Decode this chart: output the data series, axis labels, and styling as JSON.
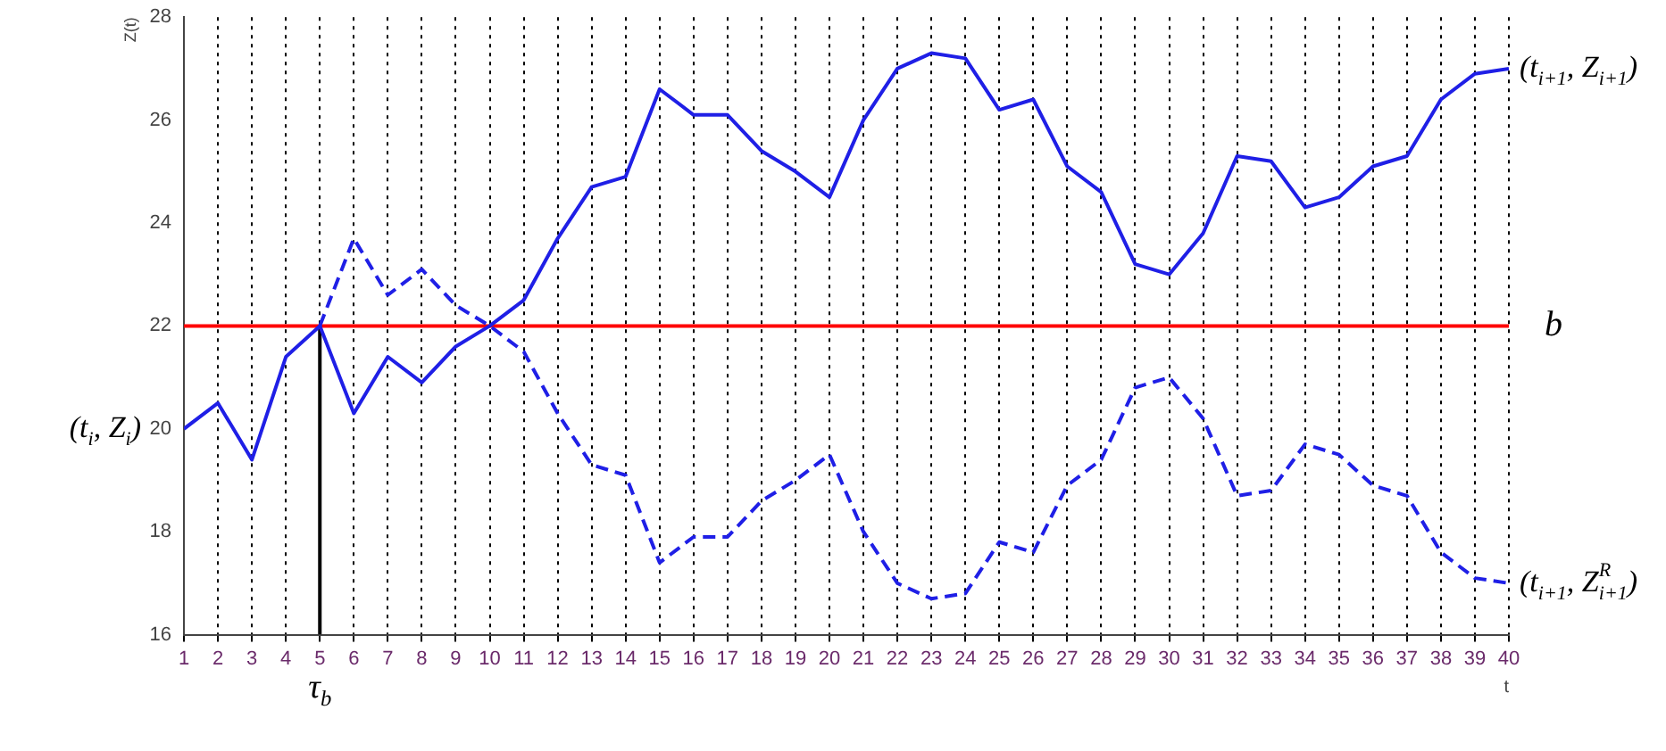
{
  "chart_data": {
    "type": "line",
    "xlabel": "t",
    "ylabel": "Z(t)",
    "x": [
      1,
      2,
      3,
      4,
      5,
      6,
      7,
      8,
      9,
      10,
      11,
      12,
      13,
      14,
      15,
      16,
      17,
      18,
      19,
      20,
      21,
      22,
      23,
      24,
      25,
      26,
      27,
      28,
      29,
      30,
      31,
      32,
      33,
      34,
      35,
      36,
      37,
      38,
      39,
      40
    ],
    "xlim": [
      1,
      40
    ],
    "xticks": [
      1,
      2,
      3,
      4,
      5,
      6,
      7,
      8,
      9,
      10,
      11,
      12,
      13,
      14,
      15,
      16,
      17,
      18,
      19,
      20,
      21,
      22,
      23,
      24,
      25,
      26,
      27,
      28,
      29,
      30,
      31,
      32,
      33,
      34,
      35,
      36,
      37,
      38,
      39,
      40
    ],
    "ylim": [
      16,
      28
    ],
    "yticks": [
      16,
      18,
      20,
      22,
      24,
      26,
      28
    ],
    "grid": "x",
    "marker": "none",
    "series": [
      {
        "color": "#1f1fe6",
        "line_style": "solid",
        "values": [
          20.0,
          20.5,
          19.4,
          21.4,
          22.0,
          20.3,
          21.4,
          20.9,
          21.6,
          22.0,
          22.5,
          23.7,
          24.7,
          24.9,
          26.6,
          26.1,
          26.1,
          25.4,
          25.0,
          24.5,
          26.0,
          27.0,
          27.3,
          27.2,
          26.2,
          26.4,
          25.1,
          24.6,
          23.2,
          23.0,
          23.8,
          25.3,
          25.2,
          24.3,
          24.5,
          25.1,
          25.3,
          26.4,
          26.9,
          27.0
        ]
      },
      {
        "color": "#1f1fe6",
        "line_style": "dashed",
        "x": [
          5,
          6,
          7,
          8,
          9,
          10,
          11,
          12,
          13,
          14,
          15,
          16,
          17,
          18,
          19,
          20,
          21,
          22,
          23,
          24,
          25,
          26,
          27,
          28,
          29,
          30,
          31,
          32,
          33,
          34,
          35,
          36,
          37,
          38,
          39,
          40
        ],
        "values": [
          22.0,
          23.7,
          22.6,
          23.1,
          22.4,
          22.0,
          21.5,
          20.3,
          19.3,
          19.1,
          17.4,
          17.9,
          17.9,
          18.6,
          19.0,
          19.5,
          18.0,
          17.0,
          16.7,
          16.8,
          17.8,
          17.6,
          18.9,
          19.4,
          20.8,
          21.0,
          20.2,
          18.7,
          18.8,
          19.7,
          19.5,
          18.9,
          18.7,
          17.6,
          17.1,
          17.0
        ]
      },
      {
        "color": "#000000",
        "line_style": "solid",
        "x": [
          5,
          5
        ],
        "values": [
          16,
          22
        ]
      }
    ],
    "ref_lines": [
      {
        "axis": "y",
        "value": 22,
        "label": "b",
        "color": "#ff0000"
      }
    ],
    "annotations": [
      {
        "text": "(t$_{i}$, Z$_{i}$)",
        "x": 1,
        "y": 20
      },
      {
        "text": "(t$_{i+1}$, Z$_{i+1}$)",
        "x": 40,
        "y": 27
      },
      {
        "text": "(t$_{i+1}$, Z$^{R}$$_{i+1}$)",
        "x": 40,
        "y": 17
      },
      {
        "text": "τ$_{b}$",
        "x": 5,
        "y": 16
      }
    ]
  }
}
